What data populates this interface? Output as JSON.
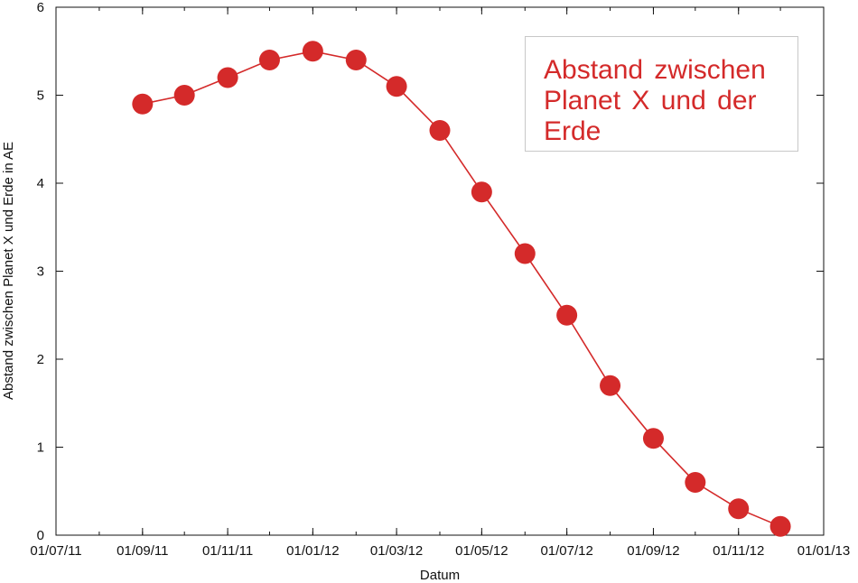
{
  "chart_data": {
    "type": "line",
    "title": "",
    "xlabel": "Datum",
    "ylabel": "Abstand zwischen Planet X und Erde in AE",
    "xlim": [
      "2011-07-01",
      "2013-01-01"
    ],
    "ylim": [
      0,
      6
    ],
    "x_ticks": [
      "01/07/11",
      "01/09/11",
      "01/11/11",
      "01/01/12",
      "01/03/12",
      "01/05/12",
      "01/07/12",
      "01/09/12",
      "01/11/12",
      "01/01/13"
    ],
    "x_tick_dates": [
      "2011-07-01",
      "2011-09-01",
      "2011-11-01",
      "2012-01-01",
      "2012-03-01",
      "2012-05-01",
      "2012-07-01",
      "2012-09-01",
      "2012-11-01",
      "2013-01-01"
    ],
    "y_ticks": [
      0,
      1,
      2,
      3,
      4,
      5,
      6
    ],
    "grid": false,
    "series": [
      {
        "color": "#d42a2a",
        "x": [
          "2011-09-01",
          "2011-10-01",
          "2011-11-01",
          "2011-12-01",
          "2012-01-01",
          "2012-02-01",
          "2012-03-01",
          "2012-04-01",
          "2012-05-01",
          "2012-06-01",
          "2012-07-01",
          "2012-08-01",
          "2012-09-01",
          "2012-10-01",
          "2012-11-01",
          "2012-12-01"
        ],
        "y": [
          4.9,
          5.0,
          5.2,
          5.4,
          5.5,
          5.4,
          5.1,
          4.6,
          3.9,
          3.2,
          2.5,
          1.7,
          1.1,
          0.6,
          0.3,
          0.1
        ]
      }
    ],
    "annotation": {
      "lines": [
        "Abstand zwischen",
        "Planet X und der",
        "Erde"
      ],
      "color": "#d42a2a",
      "placement": "top-right"
    }
  }
}
